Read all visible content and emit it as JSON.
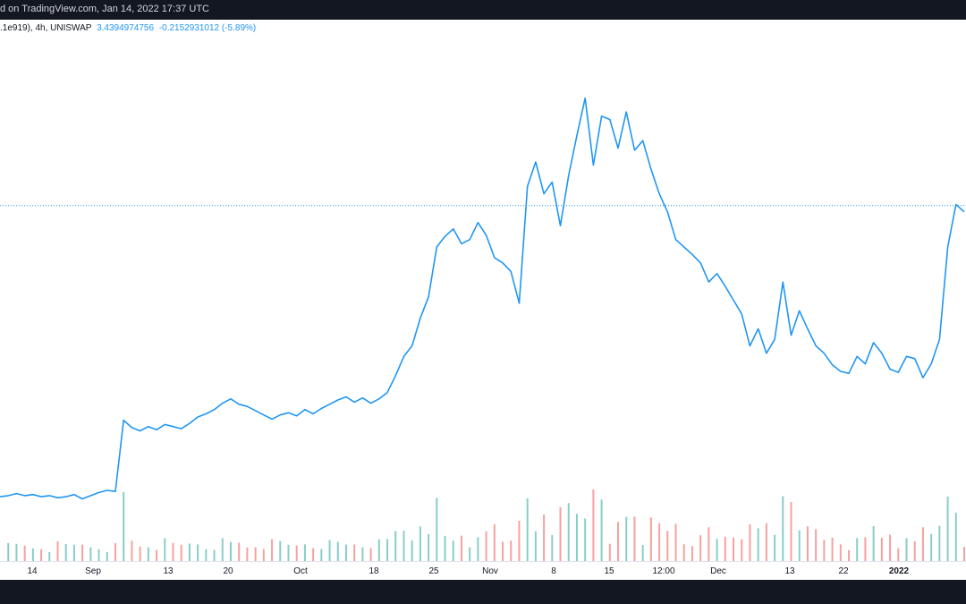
{
  "header": {
    "caption": "d on TradingView.com, Jan 14, 2022 17:37 UTC"
  },
  "legend": {
    "symbol": ".1e919), 4h, UNISWAP",
    "price": "3.4394974756",
    "change": "-0.2152931012 (-5.89%)"
  },
  "colors": {
    "line": "#2196f3",
    "volume_up": "#26a69a",
    "volume_down": "#ef5350",
    "price_line": "#2196f3",
    "background": "#ffffff",
    "frame": "#131722"
  },
  "chart_data": {
    "type": "line",
    "title": "",
    "xlabel": "",
    "ylabel": "",
    "grid": false,
    "x_tick_labels": [
      "14",
      "Sep",
      "13",
      "20",
      "Oct",
      "18",
      "25",
      "Nov",
      "8",
      "15",
      "12:00",
      "Dec",
      "13",
      "22",
      "2022"
    ],
    "last_price_marker": 3.4394974756,
    "series": [
      {
        "values": [
          0.7,
          0.71,
          0.73,
          0.71,
          0.72,
          0.7,
          0.71,
          0.69,
          0.7,
          0.72,
          0.68,
          0.71,
          0.74,
          0.76,
          0.75,
          1.42,
          1.35,
          1.32,
          1.36,
          1.33,
          1.38,
          1.36,
          1.34,
          1.39,
          1.45,
          1.48,
          1.52,
          1.58,
          1.62,
          1.57,
          1.55,
          1.51,
          1.47,
          1.43,
          1.47,
          1.49,
          1.46,
          1.52,
          1.48,
          1.53,
          1.57,
          1.61,
          1.64,
          1.59,
          1.63,
          1.58,
          1.62,
          1.68,
          1.84,
          2.02,
          2.12,
          2.38,
          2.58,
          3.05,
          3.15,
          3.22,
          3.08,
          3.12,
          3.28,
          3.16,
          2.95,
          2.9,
          2.82,
          2.52,
          3.62,
          3.85,
          3.55,
          3.66,
          3.25,
          3.72,
          4.1,
          4.45,
          3.82,
          4.28,
          4.25,
          3.98,
          4.32,
          3.96,
          4.05,
          3.78,
          3.55,
          3.38,
          3.12,
          3.05,
          2.98,
          2.9,
          2.72,
          2.8,
          2.68,
          2.55,
          2.42,
          2.12,
          2.28,
          2.05,
          2.18,
          2.72,
          2.22,
          2.45,
          2.28,
          2.12,
          2.05,
          1.94,
          1.88,
          1.86,
          2.02,
          1.95,
          2.15,
          2.05,
          1.9,
          1.87,
          2.02,
          2.0,
          1.82,
          1.95,
          2.18,
          3.05,
          3.45,
          3.38
        ]
      }
    ]
  }
}
